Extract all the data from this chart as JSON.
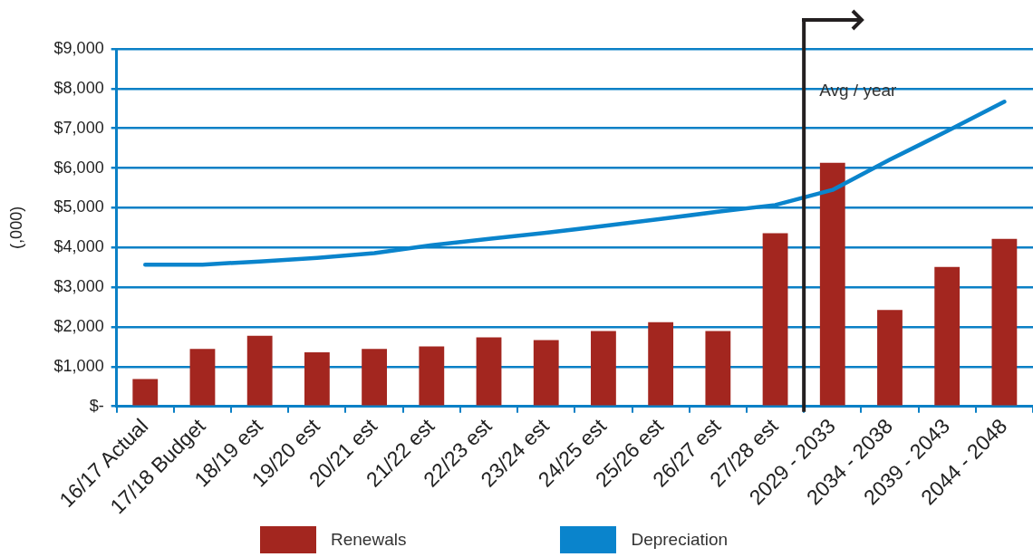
{
  "chart_data": {
    "type": "bar",
    "ylabel": "(,000)",
    "categories": [
      "16/17 Actual",
      "17/18 Budget",
      "18/19 est",
      "19/20 est",
      "20/21 est",
      "21/22 est",
      "22/23 est",
      "23/24 est",
      "24/25 est",
      "25/26 est",
      "26/27 est",
      "27/28 est",
      "2029 - 2033",
      "2034 - 2038",
      "2039 - 2043",
      "2044 - 2048"
    ],
    "series": [
      {
        "name": "Renewals",
        "type": "bar",
        "color": "#a3261f",
        "values": [
          690,
          1450,
          1780,
          1360,
          1450,
          1510,
          1740,
          1670,
          1900,
          2120,
          1900,
          4360,
          6130,
          2430,
          3510,
          4220
        ]
      },
      {
        "name": "Depreciation",
        "type": "line",
        "color": "#0a84cc",
        "values": [
          3570,
          3570,
          3650,
          3740,
          3860,
          4060,
          4220,
          4370,
          4540,
          4720,
          4900,
          5070,
          5450,
          6210,
          6930,
          7670
        ]
      }
    ],
    "ylim": [
      0,
      9000
    ],
    "yticks": [
      {
        "value": 0,
        "label": "$-"
      },
      {
        "value": 1000,
        "label": "$1,000"
      },
      {
        "value": 2000,
        "label": "$2,000"
      },
      {
        "value": 3000,
        "label": "$3,000"
      },
      {
        "value": 4000,
        "label": "$4,000"
      },
      {
        "value": 5000,
        "label": "$5,000"
      },
      {
        "value": 6000,
        "label": "$6,000"
      },
      {
        "value": 7000,
        "label": "$7,000"
      },
      {
        "value": 8000,
        "label": "$8,000"
      },
      {
        "value": 9000,
        "label": "$9,000"
      }
    ],
    "grid": "y",
    "legend": "bottom",
    "marker": "none",
    "line_style": "solid",
    "ref_lines": [
      {
        "axis": "x",
        "value": "2029 - 2033",
        "label": "Avg / year",
        "color": "#231f20",
        "line_style": "solid"
      }
    ]
  }
}
